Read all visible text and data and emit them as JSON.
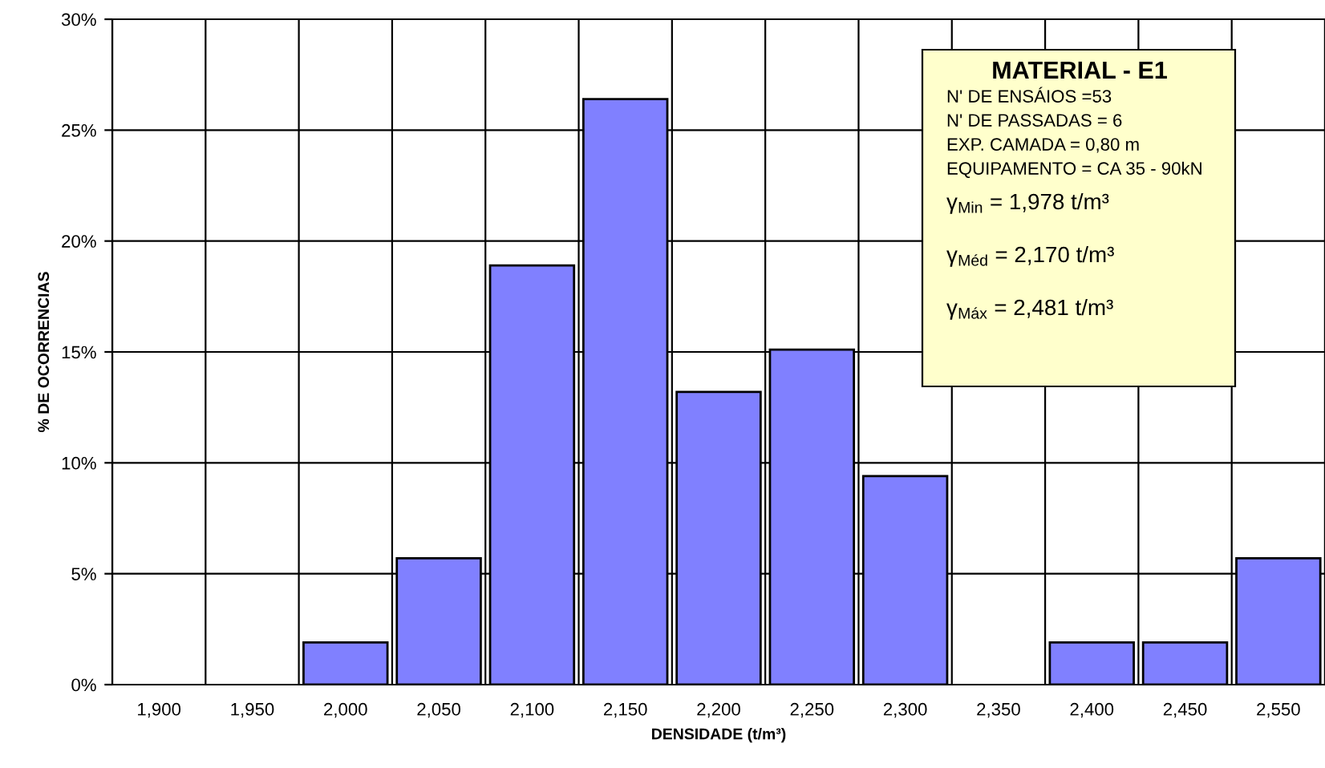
{
  "chart_data": {
    "type": "bar",
    "xlabel": "DENSIDADE (t/m³)",
    "ylabel": "% DE OCORRENCIAS",
    "categories": [
      "1,900",
      "1,950",
      "2,000",
      "2,050",
      "2,100",
      "2,150",
      "2,200",
      "2,250",
      "2,300",
      "2,350",
      "2,400",
      "2,450",
      "2,550"
    ],
    "values": [
      0,
      0,
      1.9,
      5.7,
      18.9,
      26.4,
      13.2,
      15.1,
      9.4,
      0,
      1.9,
      1.9,
      5.7
    ],
    "color": "#8080ff",
    "ylim": [
      0,
      30
    ],
    "yticks": [
      {
        "value": 0,
        "label": "0%"
      },
      {
        "value": 5,
        "label": "5%"
      },
      {
        "value": 10,
        "label": "10%"
      },
      {
        "value": 15,
        "label": "15%"
      },
      {
        "value": 20,
        "label": "20%"
      },
      {
        "value": 25,
        "label": "25%"
      },
      {
        "value": 30,
        "label": "30%"
      }
    ],
    "grid": true,
    "annotations": [
      "MATERIAL - E1",
      "N' DE ENSÁIOS =53",
      "N' DE PASSADAS = 6",
      "EXP. CAMADA = 0,80 m",
      "EQUIPAMENTO = CA 35 - 90kN",
      "γ$_{Min}$ = 1,978 t/m³",
      "γ$_{Méd}$ = 2,170 t/m³",
      "γ$_{Máx}$ = 2,481 t/m³"
    ]
  }
}
